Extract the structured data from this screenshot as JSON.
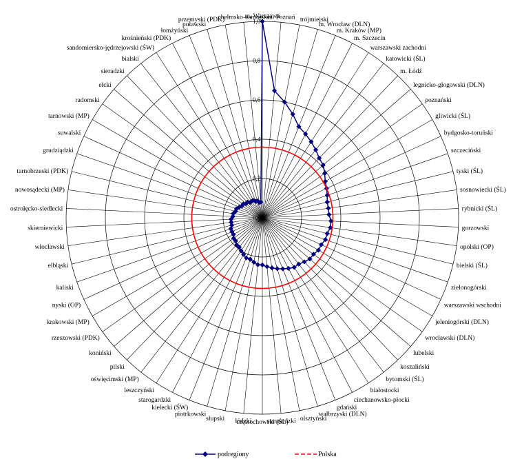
{
  "chart_data": {
    "type": "radar",
    "title": "",
    "rlim": [
      0,
      1.0
    ],
    "rticks": [
      "0,0",
      "0,2",
      "0,4",
      "0,6",
      "0,8",
      "1,0"
    ],
    "grid": true,
    "legend_position": "bottom",
    "categories": [
      "m. Warszawa",
      "m. Poznań",
      "trójmiejski",
      "m. Wrocław (DLN)",
      "m. Kraków (MP)",
      "m. Szczecin",
      "warszawski zachodni",
      "katowicki (ŚL)",
      "m. Łódź",
      "legnicko-głogowski (DLN)",
      "poznański",
      "gliwicki (ŚL)",
      "bydgosko-toruński",
      "szczeciński",
      "tyski (ŚL)",
      "sosnowiecki (ŚL)",
      "rybnicki (ŚL)",
      "gorzowski",
      "opolski (OP)",
      "bielski (ŚL)",
      "zielonogórski",
      "warszawski wschodni",
      "jeleniogórski (DLN)",
      "wrocławski (DLN)",
      "lubelski",
      "koszaliński",
      "bytomski (ŚL)",
      "białostocki",
      "ciechanowsko-płocki",
      "gdański",
      "wałbrzyski (DLN)",
      "olsztyński",
      "stargardzki",
      "częstochowski (ŚL)",
      "łódzki",
      "słupski",
      "piotrkowski",
      "kielecki (ŚW)",
      "starogardzki",
      "leszczyński",
      "oświęcimski (MP)",
      "pilski",
      "koniński",
      "rzeszowski (PDK)",
      "krakowski (MP)",
      "nyski (OP)",
      "kaliski",
      "elbląski",
      "włocławski",
      "skierniewicki",
      "ostrołęcko-siedlecki",
      "nowosądecki (MP)",
      "tarnobrzeski (PDK)",
      "grudziądzki",
      "suwalski",
      "tarnowski (MP)",
      "radomski",
      "ełcki",
      "sieradzki",
      "bialski",
      "sandomiersko-jędrzejowski (ŚW)",
      "krośnieński (PDK)",
      "łomżyński",
      "puławski",
      "przemyski (PDK)",
      "chełmsko-zamojski"
    ],
    "series": [
      {
        "name": "podregiony",
        "color": "#000080",
        "style": "solid-diamond",
        "values": [
          1.0,
          0.65,
          0.6,
          0.55,
          0.5,
          0.48,
          0.46,
          0.44,
          0.42,
          0.41,
          0.39,
          0.37,
          0.36,
          0.35,
          0.34,
          0.34,
          0.34,
          0.35,
          0.35,
          0.34,
          0.34,
          0.33,
          0.33,
          0.32,
          0.32,
          0.31,
          0.3,
          0.3,
          0.29,
          0.28,
          0.27,
          0.26,
          0.25,
          0.24,
          0.24,
          0.23,
          0.22,
          0.22,
          0.21,
          0.2,
          0.19,
          0.19,
          0.18,
          0.18,
          0.17,
          0.17,
          0.17,
          0.16,
          0.16,
          0.16,
          0.15,
          0.15,
          0.14,
          0.14,
          0.13,
          0.12,
          0.12,
          0.11,
          0.11,
          0.1,
          0.1,
          0.1,
          0.09,
          0.09,
          0.08,
          0.08
        ]
      },
      {
        "name": "Polska",
        "color": "#ff0000",
        "style": "dashed",
        "values": [
          0.36,
          0.36,
          0.36,
          0.36,
          0.36,
          0.36,
          0.36,
          0.36,
          0.36,
          0.36,
          0.36,
          0.36,
          0.36,
          0.36,
          0.36,
          0.36,
          0.36,
          0.36,
          0.36,
          0.36,
          0.36,
          0.36,
          0.36,
          0.36,
          0.36,
          0.36,
          0.36,
          0.36,
          0.36,
          0.36,
          0.36,
          0.36,
          0.36,
          0.36,
          0.36,
          0.36,
          0.36,
          0.36,
          0.36,
          0.36,
          0.36,
          0.36,
          0.36,
          0.36,
          0.36,
          0.36,
          0.36,
          0.36,
          0.36,
          0.36,
          0.36,
          0.36,
          0.36,
          0.36,
          0.36,
          0.36,
          0.36,
          0.36,
          0.36,
          0.36,
          0.36,
          0.36,
          0.36,
          0.36,
          0.36,
          0.36
        ]
      }
    ]
  }
}
